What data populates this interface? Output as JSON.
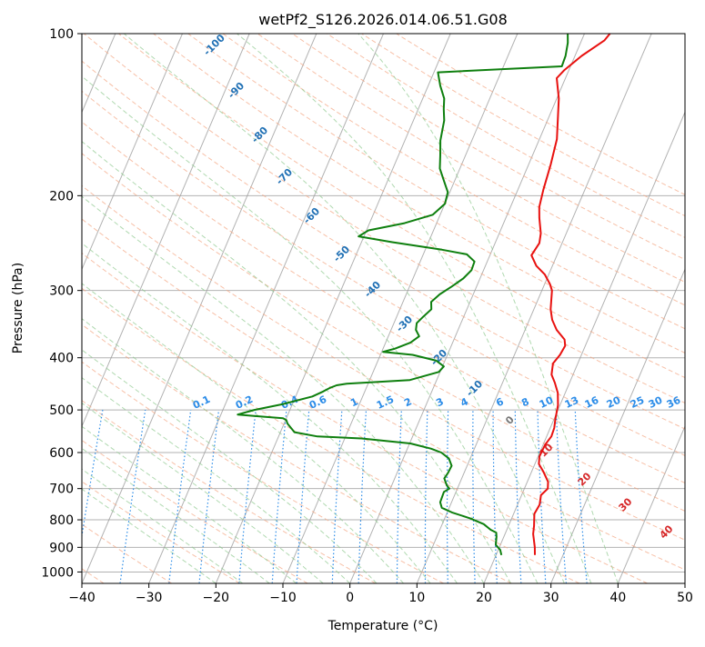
{
  "chart_data": {
    "type": "line",
    "title": "wetPf2_S126.2026.014.06.51.G08",
    "xlabel": "Temperature (°C)",
    "ylabel": "Pressure (hPa)",
    "xlim": [
      -40,
      50
    ],
    "ylim": [
      1050,
      100
    ],
    "y_scale": "log",
    "grid": true,
    "x_ticks": [
      -40,
      -30,
      -20,
      -10,
      0,
      10,
      20,
      30,
      40,
      50
    ],
    "y_ticks": [
      100,
      200,
      300,
      400,
      500,
      600,
      700,
      800,
      900,
      1000
    ],
    "series": [
      {
        "color": "#e8110f",
        "points": [
          [
            25.8,
            930
          ],
          [
            25.3,
            900
          ],
          [
            24.2,
            850
          ],
          [
            23.8,
            820
          ],
          [
            23.1,
            780
          ],
          [
            23.3,
            750
          ],
          [
            22.9,
            720
          ],
          [
            23.5,
            700
          ],
          [
            23.1,
            680
          ],
          [
            21.7,
            650
          ],
          [
            20.6,
            630
          ],
          [
            20.2,
            610
          ],
          [
            20.3,
            580
          ],
          [
            20.7,
            560
          ],
          [
            20.6,
            540
          ],
          [
            20.2,
            520
          ],
          [
            19.7,
            490
          ],
          [
            18.9,
            465
          ],
          [
            17.8,
            445
          ],
          [
            16.8,
            430
          ],
          [
            16.3,
            410
          ],
          [
            16.8,
            395
          ],
          [
            17.0,
            380
          ],
          [
            16.5,
            370
          ],
          [
            14.7,
            355
          ],
          [
            13.4,
            340
          ],
          [
            12.5,
            325
          ],
          [
            11.5,
            300
          ],
          [
            10.8,
            292
          ],
          [
            9.4,
            280
          ],
          [
            7.6,
            270
          ],
          [
            6.2,
            258
          ],
          [
            6.6,
            245
          ],
          [
            6.2,
            235
          ],
          [
            5.0,
            220
          ],
          [
            4.3,
            210
          ],
          [
            3.8,
            195
          ],
          [
            3.3,
            175
          ],
          [
            2.6,
            157
          ],
          [
            0.3,
            132
          ],
          [
            -1.3,
            121
          ],
          [
            -0.7,
            117
          ],
          [
            1.0,
            110
          ],
          [
            3.4,
            103
          ],
          [
            3.8,
            100
          ]
        ]
      },
      {
        "color": "#0e7f0e",
        "points": [
          [
            20.8,
            930
          ],
          [
            20.3,
            910
          ],
          [
            19.3,
            890
          ],
          [
            18.9,
            860
          ],
          [
            18.6,
            845
          ],
          [
            17.6,
            835
          ],
          [
            16.2,
            815
          ],
          [
            13.8,
            795
          ],
          [
            10.7,
            775
          ],
          [
            8.9,
            760
          ],
          [
            8.3,
            742
          ],
          [
            8.2,
            710
          ],
          [
            8.8,
            700
          ],
          [
            8.2,
            690
          ],
          [
            7.4,
            670
          ],
          [
            7.6,
            655
          ],
          [
            7.7,
            635
          ],
          [
            6.8,
            615
          ],
          [
            5.3,
            600
          ],
          [
            3.5,
            590
          ],
          [
            0.1,
            577
          ],
          [
            -7.5,
            565
          ],
          [
            -14.2,
            560
          ],
          [
            -17.9,
            550
          ],
          [
            -19.5,
            530
          ],
          [
            -19.9,
            522
          ],
          [
            -20.5,
            518
          ],
          [
            -24.1,
            514
          ],
          [
            -27.5,
            510
          ],
          [
            -25.3,
            500
          ],
          [
            -21.5,
            488
          ],
          [
            -17.5,
            472
          ],
          [
            -16.2,
            462
          ],
          [
            -15.4,
            455
          ],
          [
            -14.6,
            450
          ],
          [
            -13.2,
            447
          ],
          [
            -4.0,
            440
          ],
          [
            -0.2,
            425
          ],
          [
            0.2,
            415
          ],
          [
            -1.3,
            405
          ],
          [
            -5.2,
            395
          ],
          [
            -9.8,
            390
          ],
          [
            -8.3,
            385
          ],
          [
            -6.3,
            375
          ],
          [
            -5.4,
            365
          ],
          [
            -6.3,
            355
          ],
          [
            -6.6,
            345
          ],
          [
            -6.0,
            335
          ],
          [
            -5.3,
            325
          ],
          [
            -5.8,
            315
          ],
          [
            -5.0,
            305
          ],
          [
            -3.7,
            295
          ],
          [
            -2.5,
            285
          ],
          [
            -1.8,
            275
          ],
          [
            -1.9,
            265
          ],
          [
            -3.5,
            257
          ],
          [
            -7.5,
            252
          ],
          [
            -15.4,
            244
          ],
          [
            -20.8,
            238
          ],
          [
            -19.7,
            232
          ],
          [
            -14.8,
            225
          ],
          [
            -11.1,
            217
          ],
          [
            -10.0,
            207
          ],
          [
            -10.3,
            197
          ],
          [
            -11.7,
            187
          ],
          [
            -13.0,
            178
          ],
          [
            -13.8,
            168
          ],
          [
            -14.7,
            158
          ],
          [
            -15.4,
            145
          ],
          [
            -16.2,
            138
          ],
          [
            -16.8,
            132
          ],
          [
            -18.2,
            125
          ],
          [
            -19.4,
            118
          ],
          [
            -1.3,
            115
          ],
          [
            -1.4,
            110
          ],
          [
            -1.9,
            104
          ],
          [
            -2.5,
            100
          ]
        ]
      }
    ],
    "dry_adiabat_labels": [
      "-100",
      "-90",
      "-80",
      "-70",
      "-60",
      "-50",
      "-40",
      "-30",
      "-20",
      "-10",
      "0",
      "10",
      "20",
      "30",
      "40"
    ],
    "mixing_ratio_labels": [
      "0.1",
      "0.2",
      "0.4",
      "0.6",
      "1",
      "1.5",
      "2",
      "3",
      "4",
      "6",
      "8",
      "10",
      "13",
      "16",
      "20",
      "25",
      "30",
      "36"
    ],
    "mixing_ratio_values": [
      0.1,
      0.2,
      0.4,
      0.6,
      1,
      1.5,
      2,
      3,
      4,
      6,
      8,
      10,
      13,
      16,
      20,
      25,
      30,
      36
    ],
    "colors": {
      "temperature": "#e8110f",
      "dewpoint": "#0e7f0e",
      "dry_adiabat": "#f4a582",
      "moist_adiabat": "#8fc98f",
      "mixing_ratio": "#2b8ce8",
      "isotherm": "#999999",
      "dry_label": "#2171b5",
      "moist_label": "#d62728",
      "zero_label": "#777777"
    }
  }
}
